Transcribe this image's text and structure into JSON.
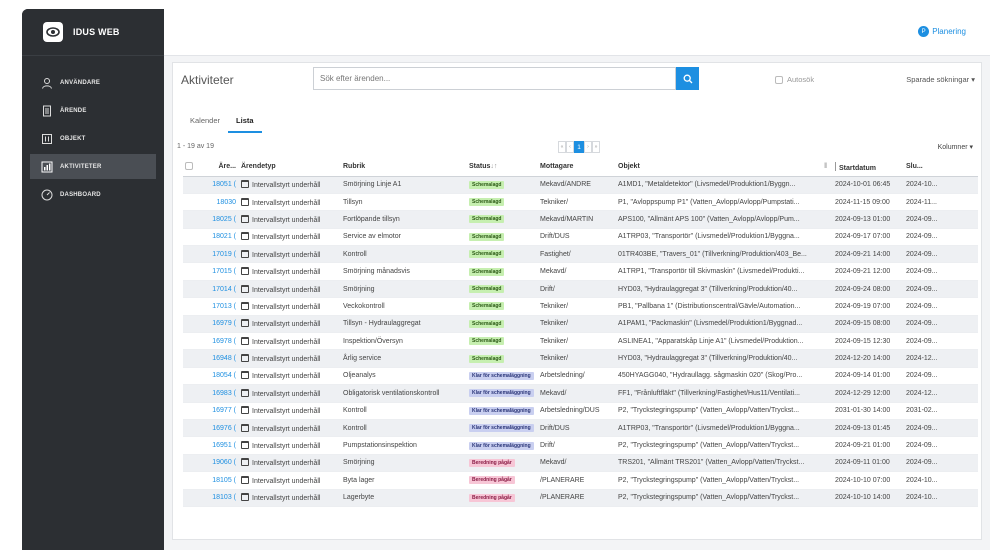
{
  "app": {
    "name": "IDUS WEB"
  },
  "sidebar": {
    "items": [
      {
        "label": "ANVÄNDARE",
        "icon": "user-icon",
        "active": false
      },
      {
        "label": "ÄRENDE",
        "icon": "document-icon",
        "active": false
      },
      {
        "label": "OBJEKT",
        "icon": "object-icon",
        "active": false
      },
      {
        "label": "AKTIVITETER",
        "icon": "chart-icon",
        "active": true
      },
      {
        "label": "DASHBOARD",
        "icon": "dashboard-icon",
        "active": false
      }
    ]
  },
  "topbar": {
    "planering_label": "Planering",
    "planering_badge": "P"
  },
  "page": {
    "title": "Aktiviteter",
    "search_placeholder": "Sök efter ärenden...",
    "autosok_label": "Autosök",
    "sparade_label": "Sparade sökningar ▾",
    "tabs": [
      "Kalender",
      "Lista"
    ],
    "active_tab": "Lista",
    "count": "1 - 19 av 19",
    "pager": [
      "«",
      "‹",
      "1",
      "›",
      "»"
    ],
    "kolumner_label": "Kolumner ▾"
  },
  "colors": {
    "accent": "#1d8fe1",
    "status": {
      "Schemalagd": {
        "bg": "#c6efb0",
        "fg": "#2c5a16"
      },
      "Klar för schemaläggning": {
        "bg": "#c9cff0",
        "fg": "#2a3578"
      },
      "Beredning pågår": {
        "bg": "#f7c6d6",
        "fg": "#8a1c45"
      }
    }
  },
  "table": {
    "headers": [
      "",
      "Äre...",
      "Ärendetyp",
      "Rubrik",
      "Status",
      "Mottagare",
      "Objekt",
      "Startdatum",
      "Slu..."
    ],
    "rows": [
      [
        "18051 (",
        "Intervallstyrt underhåll",
        "Smörjning Linje A1",
        "Schemalagd",
        "Mekavd/ANDRE",
        "A1MD1, \"Metaldetektor\" (Livsmedel/Produktion1/Byggn...",
        "2024-10-01 06:45",
        "2024-10..."
      ],
      [
        "18030",
        "Intervallstyrt underhåll",
        "Tillsyn",
        "Schemalagd",
        "Tekniker/",
        "P1, \"Avloppspump P1\" (Vatten_Avlopp/Avlopp/Pumpstati...",
        "2024-11-15 09:00",
        "2024-11..."
      ],
      [
        "18025 (",
        "Intervallstyrt underhåll",
        "Fortlöpande tillsyn",
        "Schemalagd",
        "Mekavd/MARTIN",
        "APS100, \"Allmänt APS 100\" (Vatten_Avlopp/Avlopp/Pum...",
        "2024-09-13 01:00",
        "2024-09..."
      ],
      [
        "18021 (",
        "Intervallstyrt underhåll",
        "Service av elmotor",
        "Schemalagd",
        "Drift/DUS",
        "A1TRP03, \"Transportör\" (Livsmedel/Produktion1/Byggna...",
        "2024-09-17 07:00",
        "2024-09..."
      ],
      [
        "17019 (",
        "Intervallstyrt underhåll",
        "Kontroll",
        "Schemalagd",
        "Fastighet/",
        "01TR403BE, \"Travers_01\" (Tillverkning/Produktion/403_Be...",
        "2024-09-21 14:00",
        "2024-09..."
      ],
      [
        "17015 (",
        "Intervallstyrt underhåll",
        "Smörjning månadsvis",
        "Schemalagd",
        "Mekavd/",
        "A1TRP1, \"Transportör till Skivmaskin\" (Livsmedel/Produkti...",
        "2024-09-21 12:00",
        "2024-09..."
      ],
      [
        "17014 (",
        "Intervallstyrt underhåll",
        "Smörjning",
        "Schemalagd",
        "Drift/",
        "HYD03, \"Hydraulaggregat 3\" (Tillverkning/Produktion/40...",
        "2024-09-24 08:00",
        "2024-09..."
      ],
      [
        "17013 (",
        "Intervallstyrt underhåll",
        "Veckokontroll",
        "Schemalagd",
        "Tekniker/",
        "PB1, \"Pallbana 1\" (Distributionscentral/Gävle/Automation...",
        "2024-09-19 07:00",
        "2024-09..."
      ],
      [
        "16979 (",
        "Intervallstyrt underhåll",
        "Tillsyn - Hydraulaggregat",
        "Schemalagd",
        "Tekniker/",
        "A1PAM1, \"Packmaskin\" (Livsmedel/Produktion1/Byggnad...",
        "2024-09-15 08:00",
        "2024-09..."
      ],
      [
        "16978 (",
        "Intervallstyrt underhåll",
        "Inspektion/Översyn",
        "Schemalagd",
        "Tekniker/",
        "ASLINEA1, \"Apparatskåp Linje A1\" (Livsmedel/Produktion...",
        "2024-09-15 12:30",
        "2024-09..."
      ],
      [
        "16948 (",
        "Intervallstyrt underhåll",
        "Årlig service",
        "Schemalagd",
        "Tekniker/",
        "HYD03, \"Hydraulaggregat 3\" (Tillverkning/Produktion/40...",
        "2024-12-20 14:00",
        "2024-12..."
      ],
      [
        "18054 (",
        "Intervallstyrt underhåll",
        "Oljeanalys",
        "Klar för schemaläggning",
        "Arbetsledning/",
        "450HYAGG040, \"Hydraullagg. sågmaskin 020\" (Skog/Pro...",
        "2024-09-14 01:00",
        "2024-09..."
      ],
      [
        "16983 (",
        "Intervallstyrt underhåll",
        "Obligatorisk ventilationskontroll",
        "Klar för schemaläggning",
        "Mekavd/",
        "FF1, \"Frånluftfläkt\" (Tillverkning/Fastighet/Hus11/Ventilati...",
        "2024-12-29 12:00",
        "2024-12..."
      ],
      [
        "16977 (",
        "Intervallstyrt underhåll",
        "Kontroll",
        "Klar för schemaläggning",
        "Arbetsledning/DUS",
        "P2, \"Tryckstegringspump\" (Vatten_Avlopp/Vatten/Tryckst...",
        "2031-01-30 14:00",
        "2031-02..."
      ],
      [
        "16976 (",
        "Intervallstyrt underhåll",
        "Kontroll",
        "Klar för schemaläggning",
        "Drift/DUS",
        "A1TRP03, \"Transportör\" (Livsmedel/Produktion1/Byggna...",
        "2024-09-13 01:45",
        "2024-09..."
      ],
      [
        "16951 (",
        "Intervallstyrt underhåll",
        "Pumpstationsinspektion",
        "Klar för schemaläggning",
        "Drift/",
        "P2, \"Tryckstegringspump\" (Vatten_Avlopp/Vatten/Tryckst...",
        "2024-09-21 01:00",
        "2024-09..."
      ],
      [
        "19060 (",
        "Intervallstyrt underhåll",
        "Smörjning",
        "Beredning pågår",
        "Mekavd/",
        "TRS201, \"Allmänt TRS201\" (Vatten_Avlopp/Vatten/Tryckst...",
        "2024-09-11 01:00",
        "2024-09..."
      ],
      [
        "18105 (",
        "Intervallstyrt underhåll",
        "Byta lager",
        "Beredning pågår",
        "/PLANERARE",
        "P2, \"Tryckstegringspump\" (Vatten_Avlopp/Vatten/Tryckst...",
        "2024-10-10 07:00",
        "2024-10..."
      ],
      [
        "18103 (",
        "Intervallstyrt underhåll",
        "Lagerbyte",
        "Beredning pågår",
        "/PLANERARE",
        "P2, \"Tryckstegringspump\" (Vatten_Avlopp/Vatten/Tryckst...",
        "2024-10-10 14:00",
        "2024-10..."
      ]
    ]
  }
}
